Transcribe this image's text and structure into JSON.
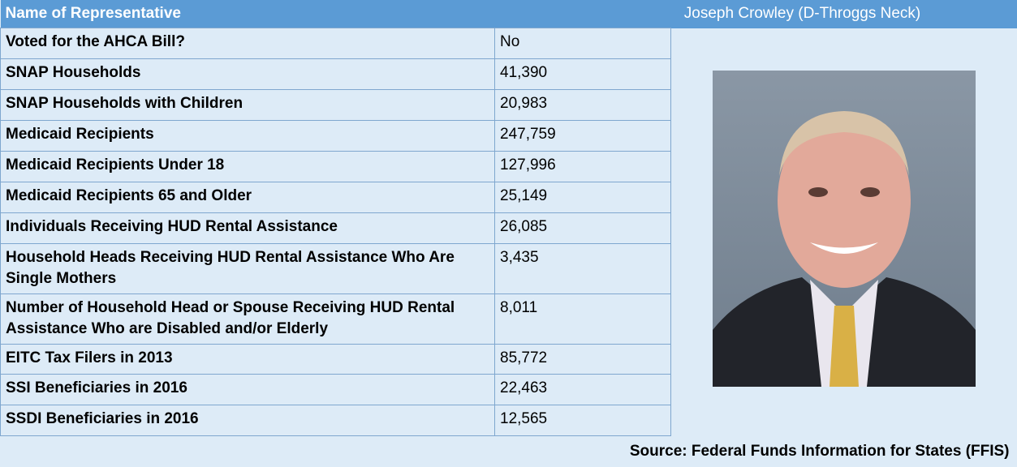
{
  "header": {
    "label": "Name of Representative",
    "name": "Joseph Crowley (D-Throggs Neck)"
  },
  "rows": [
    [
      "Voted for the AHCA Bill?",
      "No"
    ],
    [
      "SNAP Households",
      "41,390"
    ],
    [
      "SNAP Households with Children",
      "20,983"
    ],
    [
      "Medicaid Recipients",
      "247,759"
    ],
    [
      "Medicaid Recipients Under 18",
      "127,996"
    ],
    [
      "Medicaid Recipients 65 and Older",
      "25,149"
    ],
    [
      "Individuals Receiving HUD Rental Assistance",
      "26,085"
    ],
    [
      "Household Heads Receiving HUD Rental Assistance Who Are Single Mothers",
      "3,435"
    ],
    [
      "Number of Household Head or Spouse Receiving HUD Rental Assistance Who are Disabled and/or Elderly",
      "8,011"
    ],
    [
      "EITC Tax Filers in 2013",
      "85,772"
    ],
    [
      "SSI Beneficiaries in 2016",
      "22,463"
    ],
    [
      "SSDI Beneficiaries in 2016",
      "12,565"
    ]
  ],
  "source": "Source: Federal Funds Information for States (FFIS)"
}
